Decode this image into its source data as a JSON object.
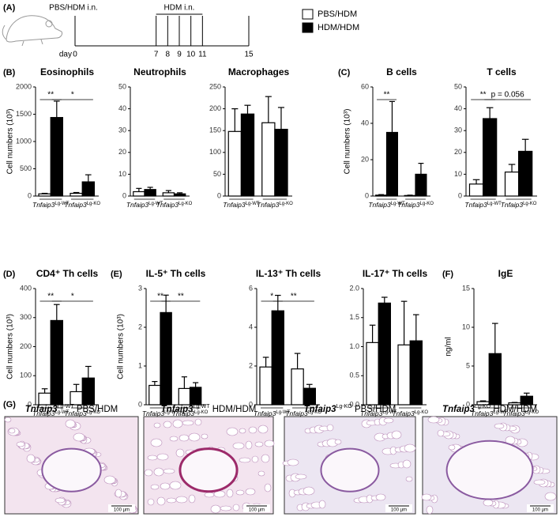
{
  "panel_labels": [
    "(A)",
    "(B)",
    "(C)",
    "(D)",
    "(E)",
    "(F)",
    "(G)"
  ],
  "timeline": {
    "treatment_1": "PBS/HDM i.n.",
    "treatment_2": "HDM i.n.",
    "axis_label": "day",
    "days": [
      0,
      7,
      8,
      9,
      10,
      11,
      15
    ]
  },
  "chart_data": [
    {
      "type": "bar",
      "title": "Eosinophils",
      "ylabel": "Cell numbers (10³)",
      "categories": [
        {
          "gene": "Tnfaip3",
          "genotype": "Lg-WT"
        },
        {
          "gene": "Tnfaip3",
          "genotype": "Lg-KO"
        }
      ],
      "series": [
        {
          "name": "PBS/HDM",
          "color": "#ffffff",
          "values": [
            40,
            50
          ],
          "errors": [
            10,
            15
          ]
        },
        {
          "name": "HDM/HDM",
          "color": "#000000",
          "values": [
            1440,
            260
          ],
          "errors": [
            300,
            130
          ]
        }
      ],
      "ylim": [
        0,
        2000
      ],
      "yticks": [
        0,
        500,
        1000,
        1500,
        2000
      ],
      "annotations": [
        "**",
        "*"
      ]
    },
    {
      "type": "bar",
      "title": "Neutrophils",
      "categories": [
        {
          "gene": "Tnfaip3",
          "genotype": "Lg-WT"
        },
        {
          "gene": "Tnfaip3",
          "genotype": "Lg-KO"
        }
      ],
      "series": [
        {
          "name": "PBS/HDM",
          "color": "#ffffff",
          "values": [
            2,
            1.5
          ],
          "errors": [
            1.5,
            1
          ]
        },
        {
          "name": "HDM/HDM",
          "color": "#000000",
          "values": [
            3,
            1
          ],
          "errors": [
            1,
            0.5
          ]
        }
      ],
      "ylim": [
        0,
        50
      ],
      "yticks": [
        0,
        10,
        20,
        30,
        40,
        50
      ],
      "annotations": []
    },
    {
      "type": "bar",
      "title": "Macrophages",
      "categories": [
        {
          "gene": "Tnfaip3",
          "genotype": "Lg-WT"
        },
        {
          "gene": "Tnfaip3",
          "genotype": "Lg-KO"
        }
      ],
      "series": [
        {
          "name": "PBS/HDM",
          "color": "#ffffff",
          "values": [
            148,
            168
          ],
          "errors": [
            52,
            60
          ]
        },
        {
          "name": "HDM/HDM",
          "color": "#000000",
          "values": [
            188,
            153
          ],
          "errors": [
            20,
            50
          ]
        }
      ],
      "ylim": [
        0,
        250
      ],
      "yticks": [
        0,
        50,
        100,
        150,
        200,
        250
      ],
      "annotations": []
    },
    {
      "type": "bar",
      "title": "B cells",
      "ylabel": "Cell numbers (10³)",
      "categories": [
        {
          "gene": "Tnfaip3",
          "genotype": "Lg-WT"
        },
        {
          "gene": "Tnfaip3",
          "genotype": "Lg-KO"
        }
      ],
      "series": [
        {
          "name": "PBS/HDM",
          "color": "#ffffff",
          "values": [
            0.5,
            0.3
          ],
          "errors": [
            0.3,
            0.2
          ]
        },
        {
          "name": "HDM/HDM",
          "color": "#000000",
          "values": [
            35,
            12
          ],
          "errors": [
            17,
            6
          ]
        }
      ],
      "ylim": [
        0,
        60
      ],
      "yticks": [
        0,
        20,
        40,
        60
      ],
      "annotations": [
        "**"
      ]
    },
    {
      "type": "bar",
      "title": "T cells",
      "categories": [
        {
          "gene": "Tnfaip3",
          "genotype": "Lg-WT"
        },
        {
          "gene": "Tnfaip3",
          "genotype": "Lg-KO"
        }
      ],
      "series": [
        {
          "name": "PBS/HDM",
          "color": "#ffffff",
          "values": [
            5.5,
            11
          ],
          "errors": [
            2,
            3.5
          ]
        },
        {
          "name": "HDM/HDM",
          "color": "#000000",
          "values": [
            35.5,
            20.5
          ],
          "errors": [
            5,
            5.5
          ]
        }
      ],
      "ylim": [
        0,
        50
      ],
      "yticks": [
        0,
        10,
        20,
        30,
        40,
        50
      ],
      "annotations": [
        "**",
        "p = 0.056"
      ]
    },
    {
      "type": "bar",
      "title": "CD4⁺ Th cells",
      "ylabel": "Cell numbers (10³)",
      "categories": [
        {
          "gene": "Tnfaip3",
          "genotype": "Lg-WT"
        },
        {
          "gene": "Tnfaip3",
          "genotype": "Lg-KO"
        }
      ],
      "series": [
        {
          "name": "PBS/HDM",
          "color": "#ffffff",
          "values": [
            40,
            45
          ],
          "errors": [
            15,
            25
          ]
        },
        {
          "name": "HDM/HDM",
          "color": "#000000",
          "values": [
            290,
            92
          ],
          "errors": [
            55,
            40
          ]
        }
      ],
      "ylim": [
        0,
        400
      ],
      "yticks": [
        0,
        100,
        200,
        300,
        400
      ],
      "annotations": [
        "**",
        "*"
      ]
    },
    {
      "type": "bar",
      "title": "IL-5⁺ Th cells",
      "ylabel": "Cell numbers (10³)",
      "categories": [
        {
          "gene": "Tnfaip3",
          "genotype": "Lg-WT"
        },
        {
          "gene": "Tnfaip3",
          "genotype": "Lg-KO"
        }
      ],
      "series": [
        {
          "name": "PBS/HDM",
          "color": "#ffffff",
          "values": [
            0.5,
            0.42
          ],
          "errors": [
            0.1,
            0.3
          ]
        },
        {
          "name": "HDM/HDM",
          "color": "#000000",
          "values": [
            2.38,
            0.45
          ],
          "errors": [
            0.45,
            0.12
          ]
        }
      ],
      "ylim": [
        0,
        3
      ],
      "yticks": [
        0,
        1,
        2,
        3
      ],
      "annotations": [
        "**",
        "**"
      ]
    },
    {
      "type": "bar",
      "title": "IL-13⁺ Th cells",
      "categories": [
        {
          "gene": "Tnfaip3",
          "genotype": "Lg-WT"
        },
        {
          "gene": "Tnfaip3",
          "genotype": "Lg-KO"
        }
      ],
      "series": [
        {
          "name": "PBS/HDM",
          "color": "#ffffff",
          "values": [
            1.95,
            1.85
          ],
          "errors": [
            0.5,
            0.8
          ]
        },
        {
          "name": "HDM/HDM",
          "color": "#000000",
          "values": [
            4.85,
            0.85
          ],
          "errors": [
            0.8,
            0.2
          ]
        }
      ],
      "ylim": [
        0,
        6
      ],
      "yticks": [
        0,
        2,
        4,
        6
      ],
      "annotations": [
        "*",
        "**"
      ]
    },
    {
      "type": "bar",
      "title": "IL-17⁺ Th cells",
      "categories": [
        {
          "gene": "Tnfaip3",
          "genotype": "Lg-WT"
        },
        {
          "gene": "Tnfaip3",
          "genotype": "Lg-KO"
        }
      ],
      "series": [
        {
          "name": "PBS/HDM",
          "color": "#ffffff",
          "values": [
            1.07,
            1.03
          ],
          "errors": [
            0.3,
            0.75
          ]
        },
        {
          "name": "HDM/HDM",
          "color": "#000000",
          "values": [
            1.75,
            1.1
          ],
          "errors": [
            0.1,
            0.45
          ]
        }
      ],
      "ylim": [
        0,
        2
      ],
      "yticks": [
        {
          "value": 0,
          "label": "0.0"
        },
        {
          "value": 0.5,
          "label": "0.5"
        },
        {
          "value": 1,
          "label": "1.0"
        },
        {
          "value": 1.5,
          "label": "1.5"
        },
        {
          "value": 2,
          "label": "2.0"
        }
      ],
      "annotations": []
    },
    {
      "type": "bar",
      "title": "IgE",
      "ylabel": "ng/ml",
      "categories": [
        {
          "gene": "Tnfaip3",
          "genotype": "Lg-WT"
        },
        {
          "gene": "Tnfaip3",
          "genotype": "Lg-KO"
        }
      ],
      "series": [
        {
          "name": "PBS/HDM",
          "color": "#ffffff",
          "values": [
            0.4,
            0.25
          ],
          "errors": [
            0.1,
            0.05
          ]
        },
        {
          "name": "HDM/HDM",
          "color": "#000000",
          "values": [
            6.6,
            1.1
          ],
          "errors": [
            3.9,
            0.4
          ]
        }
      ],
      "ylim": [
        0,
        15
      ],
      "yticks": [
        0,
        5,
        10,
        15
      ],
      "annotations": []
    }
  ],
  "histology": [
    {
      "gene": "Tnfaip3",
      "genotype": "Lg-WT",
      "treatment": "PBS/HDM",
      "scale": "100 µm"
    },
    {
      "gene": "Tnfaip3",
      "genotype": "Lg-WT",
      "treatment": "HDM/HDM",
      "scale": "100 µm"
    },
    {
      "gene": "Tnfaip3",
      "genotype": "Lg-KO",
      "treatment": "PBS/HDM",
      "scale": "100 µm"
    },
    {
      "gene": "Tnfaip3",
      "genotype": "Lg-KO",
      "treatment": "HDM/HDM",
      "scale": "100 µm"
    }
  ]
}
